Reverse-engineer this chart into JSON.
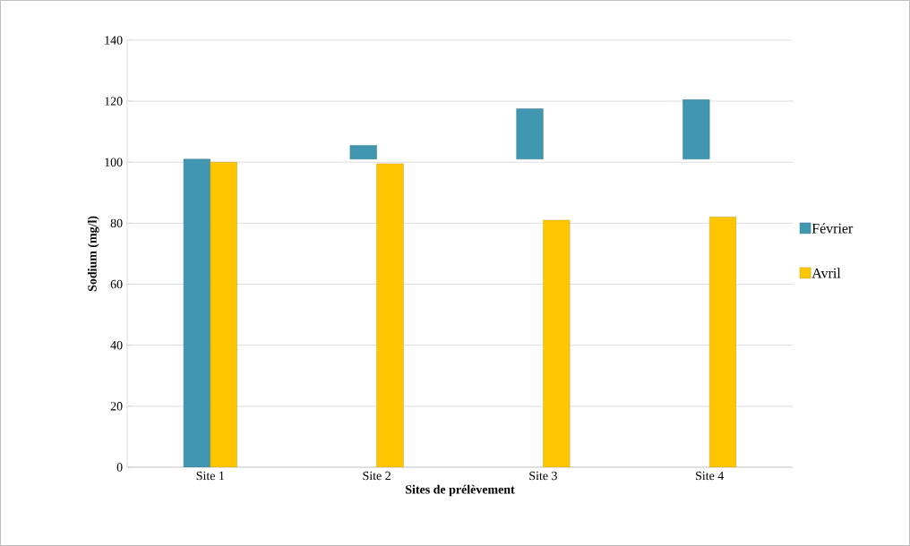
{
  "chart_data": {
    "type": "bar",
    "xlabel": "Sites de prélèvement",
    "ylabel": "Sodium (mg/l)",
    "categories": [
      "Site 1",
      "Site 2",
      "Site 3",
      "Site 4"
    ],
    "series": [
      {
        "name": "Février",
        "color": "#4197b0",
        "base": [
          0,
          101,
          101,
          101
        ],
        "values": [
          101,
          4.5,
          16.5,
          19.5
        ]
      },
      {
        "name": "Avril",
        "color": "#ffc600",
        "values": [
          100,
          99.5,
          81,
          82
        ]
      }
    ],
    "ylim": [
      0,
      140
    ],
    "yticks": [
      0,
      20,
      40,
      60,
      80,
      100,
      120,
      140
    ],
    "grid": "y",
    "legend": "right"
  }
}
